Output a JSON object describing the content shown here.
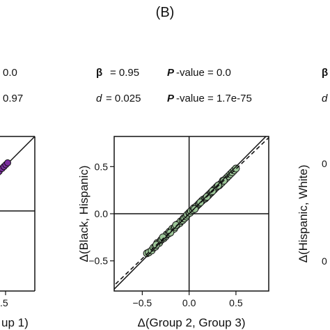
{
  "panel_label": "(B)",
  "left_fragments": {
    "stat1": "0.0",
    "stat2": "0.97",
    "xtick": ".5",
    "xlabel_tail": "up 1)"
  },
  "right_fragments": {
    "stat1_symbol": "β",
    "stat2_symbol": "d",
    "ylabel": "Δ(Hispanic, White)",
    "ytick1": "0",
    "ytick2": "0"
  },
  "stats": {
    "beta_symbol": "β",
    "beta_value": "= 0.95",
    "pval1_label": "P",
    "pval1_value": "-value = 0.0",
    "d_symbol": "d",
    "d_value": "= 0.025",
    "pval2_label": "P",
    "pval2_value": "-value = 1.7e-75"
  },
  "chart_data": {
    "type": "scatter",
    "xlabel": "Δ(Group 2, Group 3)",
    "ylabel": "Δ(Black, Hispanic)",
    "xlim": [
      -0.8,
      0.85
    ],
    "ylim": [
      -0.82,
      0.82
    ],
    "xticks": [
      -0.5,
      0.0,
      0.5
    ],
    "xtick_labels": [
      "−0.5",
      "0.0",
      "0.5"
    ],
    "yticks": [
      0.5,
      0.0,
      -0.5
    ],
    "ytick_labels": [
      "0.5",
      "0.0",
      "−0.5"
    ],
    "point_color": "#9ec99a",
    "point_edge": "#1a1a1a",
    "identity_line": true,
    "fit_line_dashed": {
      "slope": 0.95,
      "intercept": 0.0
    },
    "reference_lines": {
      "x": 0,
      "y": 0
    },
    "points": [
      [
        -0.45,
        -0.42
      ],
      [
        -0.43,
        -0.41
      ],
      [
        -0.4,
        -0.39
      ],
      [
        -0.38,
        -0.36
      ],
      [
        -0.36,
        -0.35
      ],
      [
        -0.34,
        -0.31
      ],
      [
        -0.32,
        -0.31
      ],
      [
        -0.3,
        -0.28
      ],
      [
        -0.29,
        -0.27
      ],
      [
        -0.27,
        -0.26
      ],
      [
        -0.25,
        -0.24
      ],
      [
        -0.24,
        -0.22
      ],
      [
        -0.22,
        -0.21
      ],
      [
        -0.21,
        -0.19
      ],
      [
        -0.19,
        -0.18
      ],
      [
        -0.18,
        -0.16
      ],
      [
        -0.16,
        -0.16
      ],
      [
        -0.15,
        -0.14
      ],
      [
        -0.13,
        -0.12
      ],
      [
        -0.12,
        -0.11
      ],
      [
        -0.1,
        -0.1
      ],
      [
        -0.09,
        -0.08
      ],
      [
        -0.07,
        -0.07
      ],
      [
        -0.06,
        -0.05
      ],
      [
        -0.05,
        -0.05
      ],
      [
        -0.03,
        -0.03
      ],
      [
        -0.02,
        -0.01
      ],
      [
        0.0,
        0.01
      ],
      [
        0.01,
        0.01
      ],
      [
        0.02,
        0.03
      ],
      [
        0.04,
        0.04
      ],
      [
        0.05,
        0.06
      ],
      [
        0.07,
        0.07
      ],
      [
        0.08,
        0.08
      ],
      [
        0.1,
        0.1
      ],
      [
        0.11,
        0.11
      ],
      [
        0.13,
        0.13
      ],
      [
        0.14,
        0.14
      ],
      [
        0.15,
        0.15
      ],
      [
        0.17,
        0.16
      ],
      [
        0.18,
        0.17
      ],
      [
        0.2,
        0.19
      ],
      [
        0.21,
        0.2
      ],
      [
        0.23,
        0.22
      ],
      [
        0.24,
        0.23
      ],
      [
        0.26,
        0.25
      ],
      [
        0.27,
        0.26
      ],
      [
        0.29,
        0.28
      ],
      [
        0.3,
        0.29
      ],
      [
        0.32,
        0.3
      ],
      [
        0.33,
        0.31
      ],
      [
        0.35,
        0.33
      ],
      [
        0.36,
        0.35
      ],
      [
        0.38,
        0.36
      ],
      [
        0.4,
        0.38
      ],
      [
        0.42,
        0.4
      ],
      [
        0.44,
        0.42
      ],
      [
        0.46,
        0.44
      ],
      [
        0.48,
        0.46
      ],
      [
        0.5,
        0.48
      ],
      [
        -0.35,
        -0.33
      ],
      [
        -0.28,
        -0.25
      ],
      [
        -0.2,
        -0.2
      ],
      [
        -0.14,
        -0.12
      ],
      [
        0.06,
        0.05
      ],
      [
        0.12,
        0.12
      ],
      [
        0.19,
        0.18
      ],
      [
        0.25,
        0.24
      ],
      [
        0.31,
        0.3
      ],
      [
        0.37,
        0.35
      ]
    ]
  },
  "left_panel_points": [
    [
      0.26,
      0.24
    ],
    [
      0.28,
      0.27
    ],
    [
      0.3,
      0.29
    ],
    [
      0.33,
      0.31
    ],
    [
      0.35,
      0.33
    ],
    [
      0.37,
      0.35
    ],
    [
      0.39,
      0.37
    ],
    [
      0.41,
      0.39
    ],
    [
      0.43,
      0.41
    ],
    [
      0.45,
      0.43
    ],
    [
      0.47,
      0.45
    ],
    [
      0.5,
      0.48
    ],
    [
      0.52,
      0.5
    ],
    [
      0.54,
      0.52
    ],
    [
      0.56,
      0.54
    ]
  ],
  "left_point_color": "#7a2e9e"
}
